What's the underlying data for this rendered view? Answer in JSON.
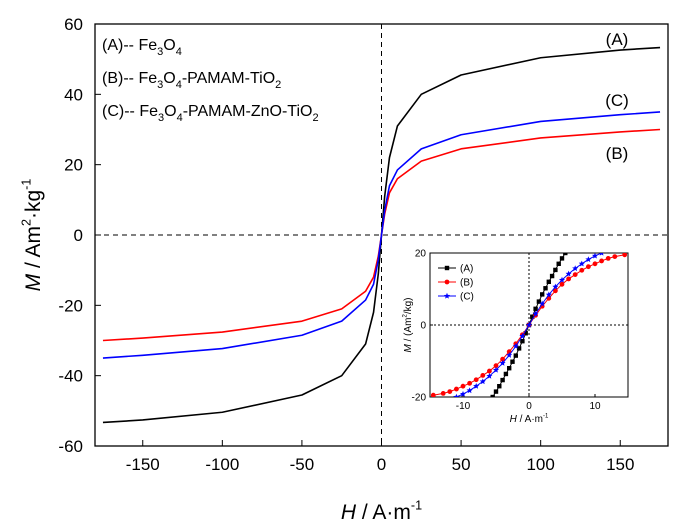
{
  "chart_data": [
    {
      "type": "line",
      "xlabel": {
        "var": "H",
        "unit_base": " / A·m",
        "unit_sup": "-1"
      },
      "ylabel": {
        "var": "M",
        "unit_a": " / Am",
        "unit_sup1": "2",
        "unit_b": "·kg",
        "unit_sup2": "-1"
      },
      "xlim": [
        -180,
        180
      ],
      "ylim": [
        -60,
        60
      ],
      "xticks": [
        -150,
        -100,
        -50,
        0,
        50,
        100,
        150
      ],
      "yticks": [
        -60,
        -40,
        -20,
        0,
        20,
        40,
        60
      ],
      "legend": {
        "placement": "top-left",
        "entries": [
          {
            "prefix": "(A)-- ",
            "parts": [
              [
                "Fe",
                ""
              ],
              [
                "3",
                "sub"
              ],
              [
                "O",
                ""
              ],
              [
                "4",
                "sub"
              ]
            ]
          },
          {
            "prefix": "(B)-- ",
            "parts": [
              [
                "Fe",
                ""
              ],
              [
                "3",
                "sub"
              ],
              [
                "O",
                ""
              ],
              [
                "4",
                "sub"
              ],
              [
                "-PAMAM-TiO",
                ""
              ],
              [
                "2",
                "sub"
              ]
            ]
          },
          {
            "prefix": "(C)-- ",
            "parts": [
              [
                "Fe",
                ""
              ],
              [
                "3",
                "sub"
              ],
              [
                "O",
                ""
              ],
              [
                "4",
                "sub"
              ],
              [
                "-PAMAM-ZnO-TiO",
                ""
              ],
              [
                "2",
                "sub"
              ]
            ]
          }
        ]
      },
      "series": [
        {
          "name": "(A)",
          "color": "#000000",
          "x": [
            -175,
            -150,
            -100,
            -50,
            -25,
            -10,
            -5,
            -2,
            0,
            2,
            5,
            10,
            25,
            50,
            100,
            150,
            175
          ],
          "y": [
            -53.3,
            -52.6,
            -50.4,
            -45.5,
            -40,
            -31,
            -22,
            -11,
            0,
            11,
            22,
            31,
            40,
            45.5,
            50.4,
            52.6,
            53.3
          ]
        },
        {
          "name": "(B)",
          "color": "#ff0000",
          "x": [
            -175,
            -150,
            -100,
            -50,
            -25,
            -10,
            -5,
            -2,
            0,
            2,
            5,
            10,
            25,
            50,
            100,
            150,
            175
          ],
          "y": [
            -30,
            -29.3,
            -27.6,
            -24.5,
            -21,
            -16,
            -12,
            -6,
            0,
            6,
            12,
            16,
            21,
            24.5,
            27.6,
            29.3,
            30
          ]
        },
        {
          "name": "(C)",
          "color": "#0000ff",
          "x": [
            -175,
            -150,
            -100,
            -50,
            -25,
            -10,
            -5,
            -2,
            0,
            2,
            5,
            10,
            25,
            50,
            100,
            150,
            175
          ],
          "y": [
            -35,
            -34.2,
            -32.3,
            -28.5,
            -24.5,
            -18.5,
            -14,
            -7,
            0,
            7,
            14,
            18.5,
            24.5,
            28.5,
            32.3,
            34.2,
            35
          ]
        }
      ],
      "annotations": [
        "(A)",
        "(C)",
        "(B)"
      ]
    },
    {
      "type": "line",
      "xlabel": {
        "var": "H",
        "unit_base": " / A·m",
        "unit_sup": "-1"
      },
      "ylabel": {
        "var": "M",
        "unit_a": " / (Am",
        "unit_sup1": "2",
        "unit_b": "/kg)"
      },
      "xlim": [
        -15,
        15
      ],
      "ylim": [
        -20,
        20
      ],
      "xticks": [
        -10,
        0,
        10
      ],
      "yticks": [
        -20,
        0,
        20
      ],
      "legend": {
        "placement": "top-left",
        "entries": [
          "(A)",
          "(B)",
          "(C)"
        ]
      },
      "series": [
        {
          "name": "(A)",
          "color": "#000000",
          "marker": "square",
          "x": [
            -5.5,
            -5,
            -4.5,
            -4,
            -3.5,
            -3,
            -2.5,
            -2,
            -1.5,
            -1,
            -0.5,
            0,
            0.5,
            1,
            1.5,
            2,
            2.5,
            3,
            3.5,
            4,
            4.5,
            5,
            5.5
          ],
          "y": [
            -20,
            -18.5,
            -17,
            -15.3,
            -13.6,
            -12,
            -10.2,
            -8.5,
            -6.5,
            -4.5,
            -2.3,
            0,
            2.3,
            4.5,
            6.5,
            8.5,
            10.2,
            12,
            13.6,
            15.3,
            17,
            18.5,
            20
          ]
        },
        {
          "name": "(B)",
          "color": "#ff0000",
          "marker": "circle",
          "x": [
            -14.5,
            -13,
            -12,
            -11,
            -10,
            -9,
            -8,
            -7,
            -6,
            -5,
            -4,
            -3,
            -2,
            -1,
            0,
            1,
            2,
            3,
            4,
            5,
            6,
            7,
            8,
            9,
            10,
            11,
            12,
            13,
            14.5
          ],
          "y": [
            -19.5,
            -19,
            -18.5,
            -17.8,
            -17,
            -16.2,
            -15.2,
            -14,
            -12.8,
            -11.3,
            -9.5,
            -7.4,
            -5.2,
            -2.7,
            0,
            2.7,
            5.2,
            7.4,
            9.5,
            11.3,
            12.8,
            14,
            15.2,
            16.2,
            17,
            17.8,
            18.5,
            19,
            19.5
          ]
        },
        {
          "name": "(C)",
          "color": "#0000ff",
          "marker": "star",
          "x": [
            -11,
            -10,
            -9,
            -8,
            -7,
            -6,
            -5,
            -4,
            -3,
            -2,
            -1,
            0,
            1,
            2,
            3,
            4,
            5,
            6,
            7,
            8,
            9,
            10,
            11
          ],
          "y": [
            -20,
            -19.2,
            -18.2,
            -17,
            -15.7,
            -14.2,
            -12.5,
            -10.6,
            -8.4,
            -5.9,
            -3.1,
            0,
            3.1,
            5.9,
            8.4,
            10.6,
            12.5,
            14.2,
            15.7,
            17,
            18.2,
            19.2,
            20
          ]
        }
      ]
    }
  ]
}
